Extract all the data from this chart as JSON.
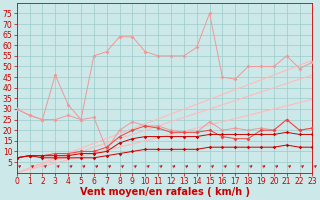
{
  "x": [
    0,
    1,
    2,
    3,
    4,
    5,
    6,
    7,
    8,
    9,
    10,
    11,
    12,
    13,
    14,
    15,
    16,
    17,
    18,
    19,
    20,
    21,
    22,
    23
  ],
  "line1_dark": [
    7,
    8,
    7,
    7,
    7,
    7,
    7,
    8,
    9,
    10,
    11,
    11,
    11,
    11,
    11,
    12,
    12,
    12,
    12,
    12,
    12,
    13,
    12,
    12
  ],
  "line2_dark": [
    7,
    8,
    8,
    8,
    8,
    9,
    9,
    10,
    14,
    16,
    17,
    17,
    17,
    17,
    17,
    18,
    18,
    18,
    18,
    18,
    18,
    19,
    18,
    18
  ],
  "line3_med": [
    7,
    8,
    8,
    9,
    9,
    10,
    10,
    12,
    17,
    20,
    22,
    21,
    19,
    19,
    19,
    20,
    17,
    16,
    16,
    20,
    20,
    25,
    20,
    21
  ],
  "line4_light": [
    30,
    27,
    25,
    25,
    27,
    25,
    26,
    11,
    20,
    24,
    22,
    22,
    20,
    19,
    19,
    24,
    20,
    21,
    20,
    21,
    20,
    25,
    20,
    21
  ],
  "line5_light": [
    30,
    27,
    25,
    46,
    32,
    25,
    55,
    57,
    64,
    64,
    57,
    55,
    55,
    55,
    59,
    75,
    45,
    44,
    50,
    50,
    50,
    55,
    49,
    52
  ],
  "ref1": [
    0,
    2.3,
    4.6,
    6.9,
    9.2,
    11.5,
    13.8,
    16.1,
    18.4,
    20.7,
    23.0,
    25.3,
    27.6,
    29.9,
    32.2,
    34.5,
    36.8,
    39.1,
    41.4,
    43.7,
    46.0,
    48.3,
    50.6,
    52.9
  ],
  "ref2": [
    0,
    2.0,
    4.0,
    6.0,
    8.0,
    10.0,
    12.0,
    14.0,
    16.0,
    18.0,
    20.0,
    22.0,
    24.0,
    26.0,
    28.0,
    30.0,
    32.0,
    34.0,
    36.0,
    38.0,
    40.0,
    42.0,
    44.0,
    46.0
  ],
  "ref3": [
    0,
    1.5,
    3.0,
    4.5,
    6.0,
    7.5,
    9.0,
    10.5,
    12.0,
    13.5,
    15.0,
    16.5,
    18.0,
    19.5,
    21.0,
    22.5,
    24.0,
    25.5,
    27.0,
    28.5,
    30.0,
    31.5,
    33.0,
    34.5
  ],
  "bg_color": "#cce8e8",
  "grid_color": "#99cccc",
  "color_dark_red": "#cc0000",
  "color_med_red": "#ee4444",
  "color_light_pink": "#ee9999",
  "color_pale_pink": "#ffbbbb",
  "xlabel": "Vent moyen/en rafales ( km/h )",
  "xlim": [
    0,
    23
  ],
  "ylim": [
    0,
    80
  ],
  "yticks": [
    5,
    10,
    15,
    20,
    25,
    30,
    35,
    40,
    45,
    50,
    55,
    60,
    65,
    70,
    75
  ],
  "xticks": [
    0,
    1,
    2,
    3,
    4,
    5,
    6,
    7,
    8,
    9,
    10,
    11,
    12,
    13,
    14,
    15,
    16,
    17,
    18,
    19,
    20,
    21,
    22,
    23
  ],
  "tick_fontsize": 5.5,
  "axis_fontsize": 7
}
